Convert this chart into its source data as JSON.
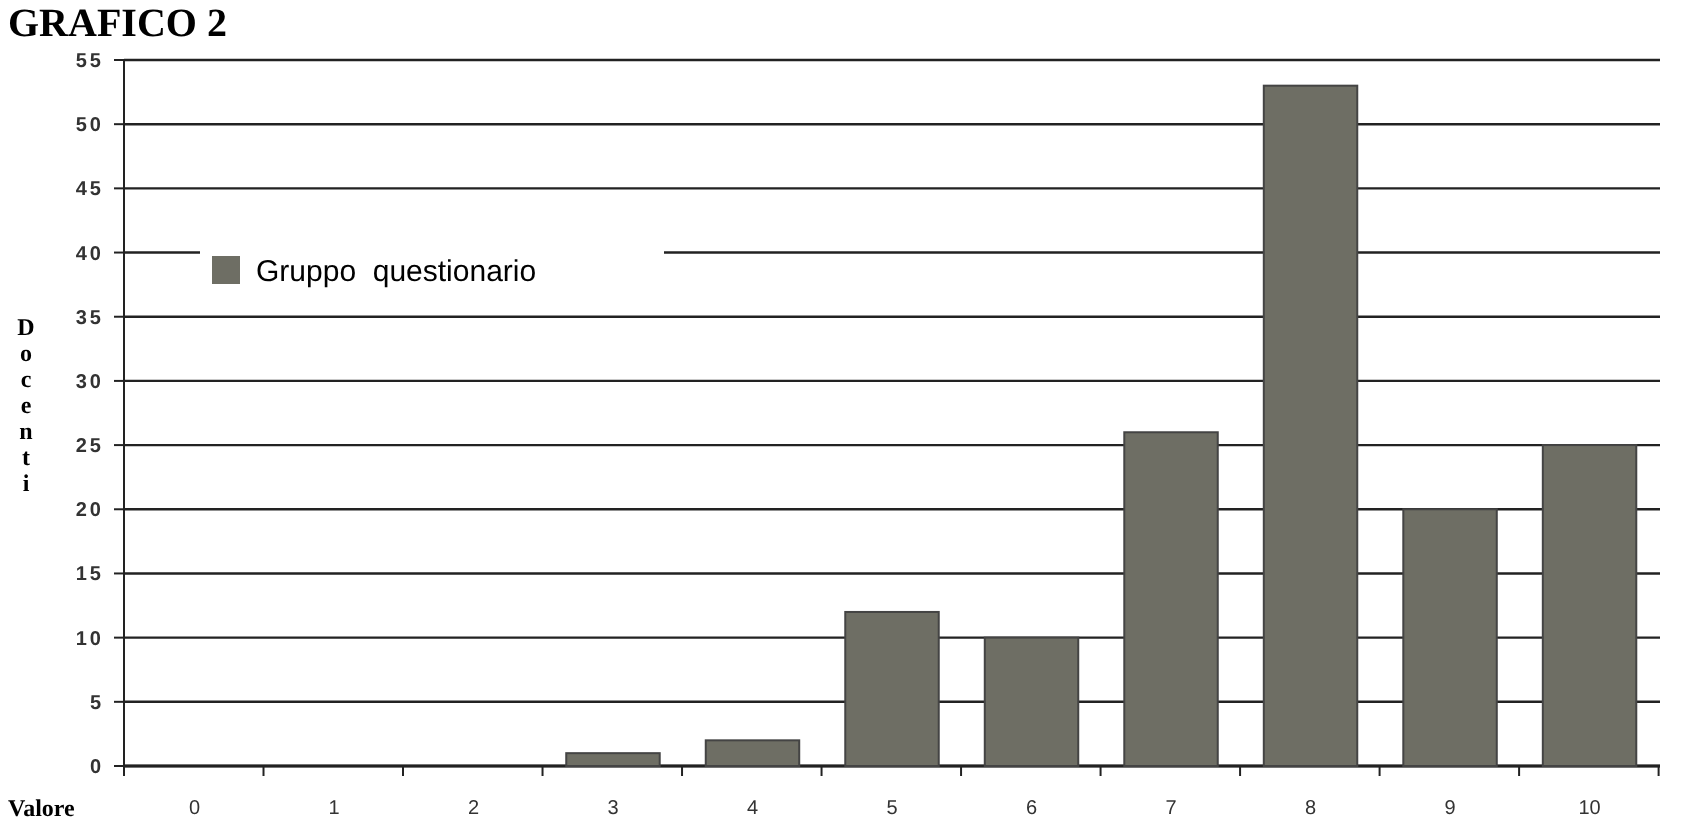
{
  "chart_data": {
    "type": "bar",
    "title": "GRAFICO 2",
    "xlabel": "Valore",
    "ylabel": "Docenti",
    "categories": [
      "0",
      "1",
      "2",
      "3",
      "4",
      "5",
      "6",
      "7",
      "8",
      "9",
      "10"
    ],
    "series": [
      {
        "name": "Gruppo  questionario",
        "color": "#6e6e64",
        "values": [
          0,
          0,
          0,
          1,
          2,
          12,
          10,
          26,
          53,
          20,
          25
        ]
      }
    ],
    "ylim": [
      0,
      55
    ],
    "yticks": [
      0,
      5,
      10,
      15,
      20,
      25,
      30,
      35,
      40,
      45,
      50,
      55
    ],
    "grid": "y",
    "legend": "left"
  }
}
